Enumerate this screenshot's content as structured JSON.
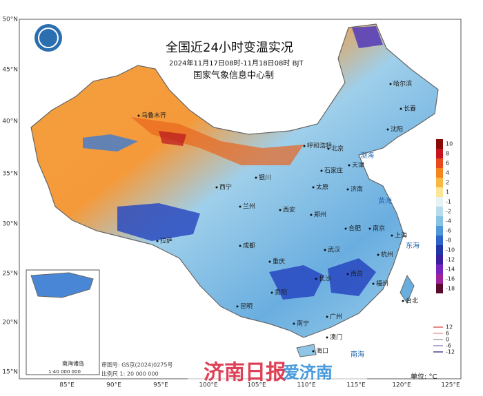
{
  "header": {
    "title": "全国近24小时变温实况",
    "subtitle": "2024年11月17日08时-11月18日08时 BJT",
    "producer": "国家气象信息中心制"
  },
  "axes": {
    "lat": [
      "50°N",
      "45°N",
      "40°N",
      "35°N",
      "30°N",
      "25°N",
      "20°N",
      "15°N"
    ],
    "lon": [
      "85°E",
      "90°E",
      "95°E",
      "100°E",
      "105°E",
      "110°E",
      "115°E",
      "120°E",
      "125°E"
    ]
  },
  "cities": [
    "乌鲁木齐",
    "呼和浩特",
    "北京",
    "天津",
    "石家庄",
    "太原",
    "银川",
    "西宁",
    "兰州",
    "西安",
    "郑州",
    "济南",
    "合肥",
    "南京",
    "上海",
    "武汉",
    "杭州",
    "成都",
    "重庆",
    "长沙",
    "南昌",
    "福州",
    "贵阳",
    "昆明",
    "南宁",
    "广州",
    "澳门",
    "海口",
    "台北",
    "拉萨",
    "哈尔滨",
    "长春",
    "沈阳"
  ],
  "seas": [
    "渤海",
    "黄海",
    "东海",
    "南海"
  ],
  "legend": {
    "levels": [
      10,
      8,
      6,
      4,
      2,
      1,
      -1,
      -2,
      -4,
      -6,
      -8,
      -10,
      -12,
      -14,
      -16,
      -18
    ],
    "colors": [
      "#8a0a0a",
      "#c7141e",
      "#e64a1e",
      "#f4861f",
      "#f8b843",
      "#fbe596",
      "#e6f2f4",
      "#b9dcec",
      "#87c3e5",
      "#4f99d8",
      "#2c64c9",
      "#2136a6",
      "#3c1f9e",
      "#7723bd",
      "#9d229c",
      "#5a0a2a"
    ],
    "contours": [
      12,
      6,
      0,
      -6,
      -12
    ],
    "contour_colors": [
      "#e06060",
      "#e8a0a0",
      "#a0a0a0",
      "#9a88c8",
      "#504090"
    ],
    "unit": "单位: °C"
  },
  "inset": {
    "title": "南海诸岛",
    "scale": "1:40 000 000"
  },
  "footer": {
    "review": "审图号: GS京(2024)0275号",
    "scale": "比例尺 1: 20 000 000"
  },
  "watermark": [
    "济南日报",
    "爱济南"
  ]
}
